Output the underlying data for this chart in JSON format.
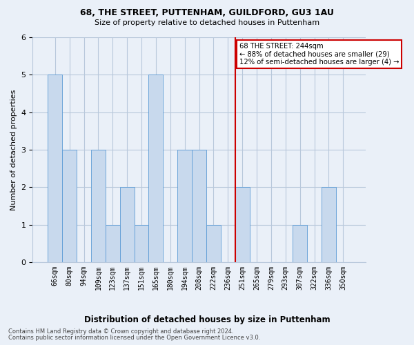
{
  "title1": "68, THE STREET, PUTTENHAM, GUILDFORD, GU3 1AU",
  "title2": "Size of property relative to detached houses in Puttenham",
  "xlabel": "Distribution of detached houses by size in Puttenham",
  "ylabel": "Number of detached properties",
  "footer1": "Contains HM Land Registry data © Crown copyright and database right 2024.",
  "footer2": "Contains public sector information licensed under the Open Government Licence v3.0.",
  "categories": [
    "66sqm",
    "80sqm",
    "94sqm",
    "109sqm",
    "123sqm",
    "137sqm",
    "151sqm",
    "165sqm",
    "180sqm",
    "194sqm",
    "208sqm",
    "222sqm",
    "236sqm",
    "251sqm",
    "265sqm",
    "279sqm",
    "293sqm",
    "307sqm",
    "322sqm",
    "336sqm",
    "350sqm"
  ],
  "values": [
    5,
    3,
    0,
    3,
    1,
    2,
    1,
    5,
    0,
    3,
    3,
    1,
    0,
    2,
    0,
    0,
    0,
    1,
    0,
    2,
    0
  ],
  "bar_color": "#c8d9ed",
  "bar_edge_color": "#5b9bd5",
  "bar_linewidth": 0.6,
  "grid_color": "#b8c8db",
  "background_color": "#eaf0f8",
  "vline_color": "#cc0000",
  "annotation_text": "68 THE STREET: 244sqm\n← 88% of detached houses are smaller (29)\n12% of semi-detached houses are larger (4) →",
  "annotation_box_color": "white",
  "annotation_box_edge": "#cc0000",
  "ylim": [
    0,
    6
  ],
  "yticks": [
    0,
    1,
    2,
    3,
    4,
    5,
    6
  ]
}
